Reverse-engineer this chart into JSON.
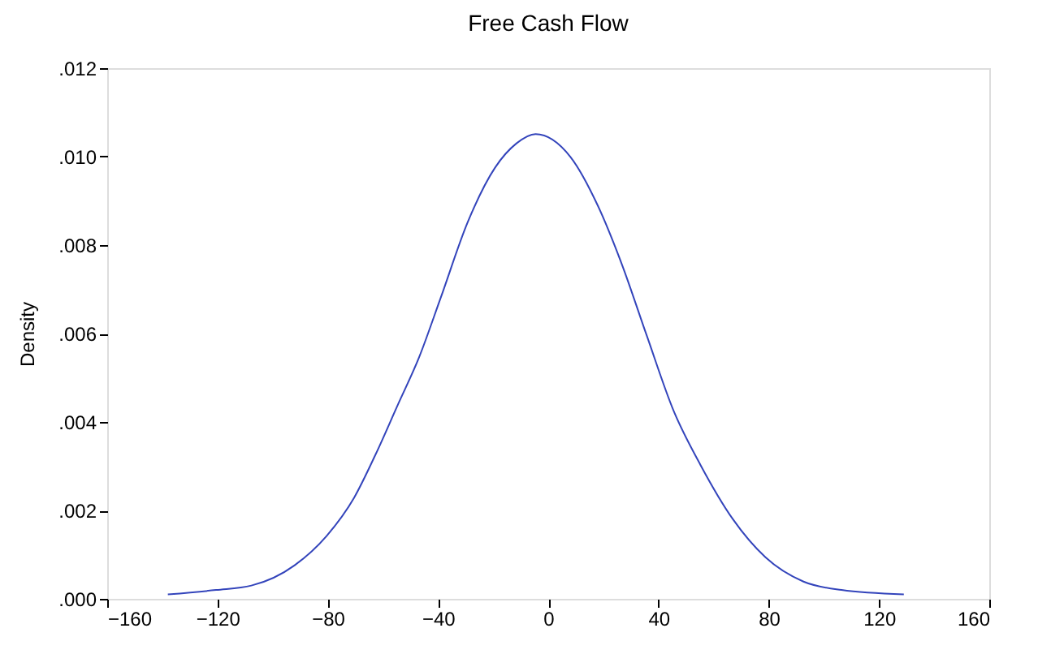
{
  "chart_data": {
    "type": "line",
    "title": "Free Cash Flow",
    "ylabel": "Density",
    "x": [
      -138,
      -120.5,
      -107.7,
      -92,
      -80.3,
      -70.4,
      -62.6,
      -54.7,
      -46.8,
      -39,
      -29.2,
      -19.3,
      -11.5,
      -4.6,
      8.1,
      18,
      26.8,
      35.7,
      45.5,
      55.3,
      67,
      78.8,
      92.6,
      106.4,
      129
    ],
    "series": [
      {
        "color": "#3344bb",
        "values": [
          0.0001,
          0.0002,
          0.0003,
          0.00076,
          0.00143,
          0.00229,
          0.00327,
          0.00437,
          0.00547,
          0.00681,
          0.00852,
          0.00975,
          0.0103,
          0.01051,
          0.00999,
          0.00889,
          0.00755,
          0.00596,
          0.00425,
          0.00302,
          0.0018,
          0.00094,
          0.00039,
          0.0002,
          0.0001
        ]
      }
    ],
    "xlim": [
      -160,
      160
    ],
    "xticks": [
      -160,
      -120,
      -80,
      -40,
      0,
      40,
      80,
      120,
      160
    ],
    "ylim": [
      0,
      0.012
    ],
    "yticks": [
      {
        "value": 0,
        "label": ".000"
      },
      {
        "value": 0.002,
        "label": ".002"
      },
      {
        "value": 0.004,
        "label": ".004"
      },
      {
        "value": 0.006,
        "label": ".006"
      },
      {
        "value": 0.008,
        "label": ".008"
      },
      {
        "value": 0.01,
        "label": ".010"
      },
      {
        "value": 0.012,
        "label": ".012"
      }
    ],
    "grid": false,
    "marker": "none",
    "line_style": "solid"
  }
}
